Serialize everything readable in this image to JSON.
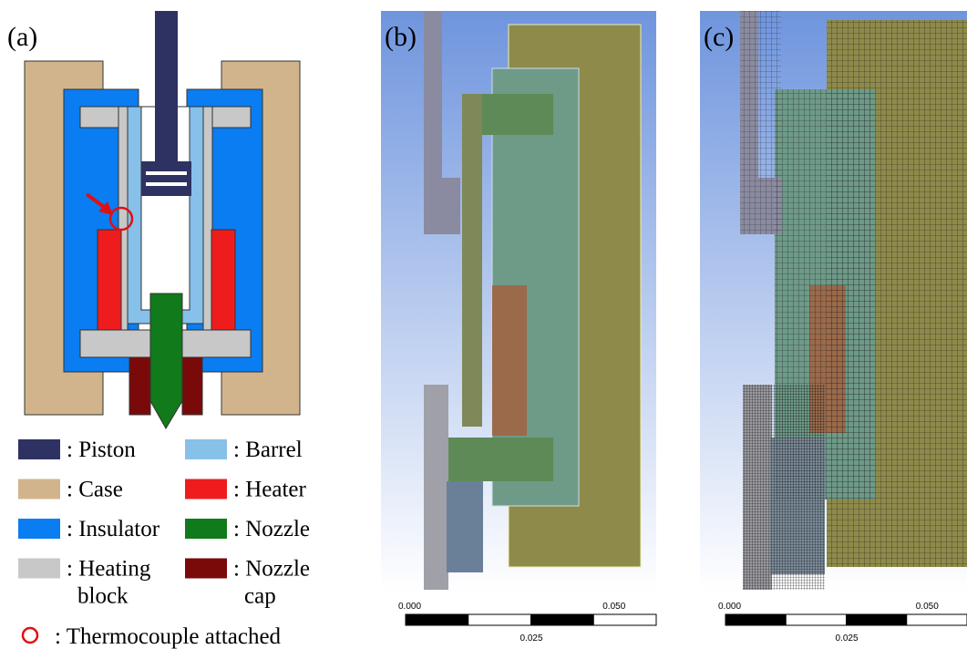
{
  "panels": [
    {
      "label": "(a)"
    },
    {
      "label": "(b)",
      "scale": {
        "start": "0.000",
        "end": "0.050",
        "mid": "0.025"
      }
    },
    {
      "label": "(c)",
      "scale": {
        "start": "0.000",
        "end": "0.050",
        "mid": "0.025"
      }
    }
  ],
  "legend": {
    "items": [
      {
        "lines": [
          ": Piston"
        ]
      },
      {
        "lines": [
          ": Barrel"
        ]
      },
      {
        "lines": [
          ": Case"
        ]
      },
      {
        "lines": [
          ": Heater"
        ]
      },
      {
        "lines": [
          ": Insulator"
        ]
      },
      {
        "lines": [
          ": Nozzle"
        ]
      },
      {
        "lines": [
          ": Heating",
          "block"
        ]
      },
      {
        "lines": [
          ": Nozzle",
          "cap"
        ]
      }
    ],
    "thermocouple": ": Thermocouple attached"
  }
}
